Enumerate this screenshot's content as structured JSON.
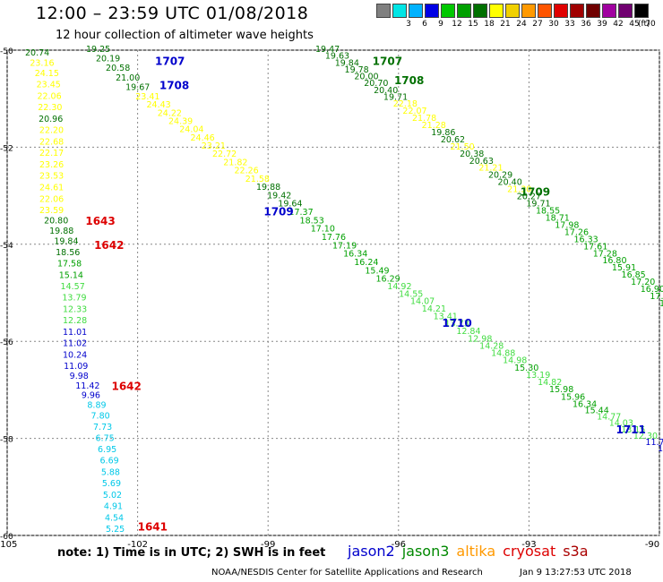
{
  "header": {
    "title": "12:00 – 23:59 UTC 01/08/2018",
    "subtitle": "12 hour collection of altimeter wave heights"
  },
  "legend": {
    "unit": "(ft)",
    "levels": [
      {
        "label": "",
        "color": "#808080"
      },
      {
        "label": "3",
        "color": "#00e5e5"
      },
      {
        "label": "6",
        "color": "#00b2ff"
      },
      {
        "label": "9",
        "color": "#0000e5"
      },
      {
        "label": "12",
        "color": "#00c800"
      },
      {
        "label": "15",
        "color": "#00a000"
      },
      {
        "label": "18",
        "color": "#007000"
      },
      {
        "label": "21",
        "color": "#ffff00"
      },
      {
        "label": "24",
        "color": "#f0d000"
      },
      {
        "label": "27",
        "color": "#ff9900"
      },
      {
        "label": "30",
        "color": "#ff5500"
      },
      {
        "label": "33",
        "color": "#e00000"
      },
      {
        "label": "36",
        "color": "#a00000"
      },
      {
        "label": "39",
        "color": "#700000"
      },
      {
        "label": "42",
        "color": "#a000a0"
      },
      {
        "label": "45",
        "color": "#700070"
      },
      {
        "label": "70",
        "color": "#000000"
      }
    ]
  },
  "map": {
    "lon_labels": [
      "-105",
      "-102",
      "-99",
      "-96",
      "-93",
      "-90"
    ],
    "lat_labels": [
      "-50",
      "-52",
      "-54",
      "-56",
      "-58",
      "-60"
    ],
    "lon_range": [
      -105,
      -90
    ],
    "lat_range": [
      -50,
      -60
    ],
    "colors": {
      "grid": "#888888",
      "frame": "#000000"
    }
  },
  "wave_colors": {
    "yellow": "#ffff00",
    "dgreen": "#007000",
    "mgreen": "#00a000",
    "lgreen": "#40dc40",
    "blue": "#0000cc",
    "cyan": "#00c8e8",
    "red": "#dd0000"
  },
  "satellite_colors": {
    "jason2": "#0000cc",
    "jason3": "#008800",
    "altika": "#ff9900",
    "cryosat": "#dd0000",
    "s3a": "#aa0000"
  },
  "tracks": [
    {
      "name": "track-a",
      "values": [
        [
          "20.74",
          "dgreen"
        ],
        [
          "23.16",
          "yellow"
        ],
        [
          "24.15",
          "yellow"
        ],
        [
          "23.45",
          "yellow"
        ],
        [
          "22.06",
          "yellow"
        ],
        [
          "22.30",
          "yellow"
        ],
        [
          "20.96",
          "dgreen"
        ],
        [
          "22.20",
          "yellow"
        ],
        [
          "22.68",
          "yellow"
        ],
        [
          "22.17",
          "yellow"
        ],
        [
          "23.26",
          "yellow"
        ],
        [
          "23.53",
          "yellow"
        ],
        [
          "24.61",
          "yellow"
        ],
        [
          "22.06",
          "yellow"
        ],
        [
          "23.59",
          "yellow"
        ],
        [
          "20.80",
          "dgreen"
        ],
        [
          "19.88",
          "dgreen"
        ],
        [
          "19.84",
          "dgreen"
        ],
        [
          "18.56",
          "dgreen"
        ],
        [
          "17.58",
          "mgreen"
        ],
        [
          "15.14",
          "mgreen"
        ],
        [
          "14.57",
          "lgreen"
        ],
        [
          "13.79",
          "lgreen"
        ],
        [
          "12.33",
          "lgreen"
        ],
        [
          "12.28",
          "lgreen"
        ],
        [
          "11.01",
          "blue"
        ],
        [
          "11.02",
          "blue"
        ],
        [
          "10.24",
          "blue"
        ],
        [
          "11.09",
          "blue"
        ],
        [
          "9.98",
          "blue"
        ],
        [
          "11.42",
          "blue"
        ],
        [
          "9.96",
          "blue"
        ],
        [
          "8.89",
          "cyan"
        ],
        [
          "7.80",
          "cyan"
        ],
        [
          "7.73",
          "cyan"
        ],
        [
          "6.75",
          "cyan"
        ],
        [
          "6.95",
          "cyan"
        ],
        [
          "6.69",
          "cyan"
        ],
        [
          "5.88",
          "cyan"
        ],
        [
          "5.69",
          "cyan"
        ],
        [
          "5.02",
          "cyan"
        ],
        [
          "4.91",
          "cyan"
        ],
        [
          "4.54",
          "cyan"
        ],
        [
          "5.25",
          "cyan"
        ]
      ]
    },
    {
      "name": "track-b",
      "values": [
        [
          "19.25",
          "dgreen"
        ],
        [
          "20.19",
          "dgreen"
        ],
        [
          "20.58",
          "dgreen"
        ],
        [
          "21.00",
          "dgreen"
        ],
        [
          "19.67",
          "dgreen"
        ],
        [
          "23.41",
          "yellow"
        ],
        [
          "24.43",
          "yellow"
        ],
        [
          "24.22",
          "yellow"
        ],
        [
          "24.39",
          "yellow"
        ],
        [
          "24.04",
          "yellow"
        ],
        [
          "24.46",
          "yellow"
        ],
        [
          "23.21",
          "yellow"
        ],
        [
          "22.72",
          "yellow"
        ],
        [
          "21.82",
          "yellow"
        ],
        [
          "22.26",
          "yellow"
        ],
        [
          "21.58",
          "yellow"
        ],
        [
          "19.88",
          "dgreen"
        ],
        [
          "19.42",
          "dgreen"
        ],
        [
          "19.64",
          "dgreen"
        ],
        [
          "17.37",
          "mgreen"
        ],
        [
          "18.53",
          "mgreen"
        ],
        [
          "17.10",
          "mgreen"
        ],
        [
          "17.76",
          "mgreen"
        ],
        [
          "17.19",
          "mgreen"
        ],
        [
          "16.34",
          "mgreen"
        ],
        [
          "16.24",
          "mgreen"
        ],
        [
          "15.49",
          "mgreen"
        ],
        [
          "16.29",
          "mgreen"
        ],
        [
          "14.92",
          "lgreen"
        ],
        [
          "14.55",
          "lgreen"
        ],
        [
          "14.07",
          "lgreen"
        ],
        [
          "14.21",
          "lgreen"
        ],
        [
          "13.41",
          "lgreen"
        ],
        [
          "13.73",
          "lgreen"
        ],
        [
          "12.84",
          "lgreen"
        ],
        [
          "12.98",
          "lgreen"
        ],
        [
          "14.28",
          "lgreen"
        ],
        [
          "14.88",
          "lgreen"
        ],
        [
          "14.98",
          "lgreen"
        ],
        [
          "15.30",
          "mgreen"
        ],
        [
          "13.19",
          "lgreen"
        ],
        [
          "14.82",
          "lgreen"
        ],
        [
          "15.98",
          "mgreen"
        ],
        [
          "15.96",
          "mgreen"
        ],
        [
          "16.34",
          "mgreen"
        ],
        [
          "15.44",
          "mgreen"
        ],
        [
          "14.77",
          "lgreen"
        ],
        [
          "14.03",
          "lgreen"
        ],
        [
          "13.15",
          "lgreen"
        ],
        [
          "12.30",
          "lgreen"
        ],
        [
          "11.76",
          "blue"
        ],
        [
          "11",
          "blue"
        ]
      ]
    },
    {
      "name": "track-c",
      "values": [
        [
          "19.47",
          "dgreen"
        ],
        [
          "19.63",
          "dgreen"
        ],
        [
          "19.84",
          "dgreen"
        ],
        [
          "19.78",
          "dgreen"
        ],
        [
          "20.00",
          "dgreen"
        ],
        [
          "20.70",
          "dgreen"
        ],
        [
          "20.40",
          "dgreen"
        ],
        [
          "19.71",
          "dgreen"
        ],
        [
          "22.18",
          "yellow"
        ],
        [
          "22.07",
          "yellow"
        ],
        [
          "21.78",
          "yellow"
        ],
        [
          "21.28",
          "yellow"
        ],
        [
          "19.86",
          "dgreen"
        ],
        [
          "20.62",
          "dgreen"
        ],
        [
          "21.50",
          "yellow"
        ],
        [
          "20.38",
          "dgreen"
        ],
        [
          "20.63",
          "dgreen"
        ],
        [
          "21.21",
          "yellow"
        ],
        [
          "20.29",
          "dgreen"
        ],
        [
          "20.40",
          "dgreen"
        ],
        [
          "21.30",
          "yellow"
        ],
        [
          "20.27",
          "dgreen"
        ],
        [
          "19.71",
          "dgreen"
        ],
        [
          "18.55",
          "mgreen"
        ],
        [
          "18.71",
          "mgreen"
        ],
        [
          "17.98",
          "mgreen"
        ],
        [
          "17.26",
          "mgreen"
        ],
        [
          "16.33",
          "mgreen"
        ],
        [
          "17.61",
          "mgreen"
        ],
        [
          "17.28",
          "mgreen"
        ],
        [
          "16.80",
          "mgreen"
        ],
        [
          "15.91",
          "mgreen"
        ],
        [
          "16.85",
          "mgreen"
        ],
        [
          "17.20",
          "mgreen"
        ],
        [
          "16.90",
          "mgreen"
        ],
        [
          "17.14",
          "mgreen"
        ],
        [
          "17",
          "mgreen"
        ]
      ]
    }
  ],
  "time_labels": [
    {
      "text": "1707",
      "color": "blue",
      "lon": -101.6,
      "lat": -50.3
    },
    {
      "text": "1708",
      "color": "blue",
      "lon": -101.5,
      "lat": -50.8
    },
    {
      "text": "1709",
      "color": "blue",
      "lon": -99.1,
      "lat": -53.4
    },
    {
      "text": "1710",
      "color": "blue",
      "lon": -95.0,
      "lat": -55.7
    },
    {
      "text": "1711",
      "color": "blue",
      "lon": -91.0,
      "lat": -57.9
    },
    {
      "text": "1707",
      "color": "dgreen",
      "lon": -96.6,
      "lat": -50.3
    },
    {
      "text": "1708",
      "color": "dgreen",
      "lon": -96.1,
      "lat": -50.7
    },
    {
      "text": "1709",
      "color": "dgreen",
      "lon": -93.2,
      "lat": -53.0
    },
    {
      "text": "1643",
      "color": "red",
      "lon": -103.2,
      "lat": -53.6
    },
    {
      "text": "1642",
      "color": "red",
      "lon": -103.0,
      "lat": -54.1
    },
    {
      "text": "1642",
      "color": "red",
      "lon": -102.6,
      "lat": -57.0
    },
    {
      "text": "1641",
      "color": "red",
      "lon": -102.0,
      "lat": -59.9
    }
  ],
  "footer": {
    "note": "note:  1) Time is in UTC;  2) SWH is in feet",
    "satellites": [
      {
        "key": "jason2",
        "label": "jason2"
      },
      {
        "key": "jason3",
        "label": "jason3"
      },
      {
        "key": "altika",
        "label": "altika"
      },
      {
        "key": "cryosat",
        "label": "cryosat"
      },
      {
        "key": "s3a",
        "label": "s3a"
      }
    ],
    "credit": "NOAA/NESDIS Center for Satellite Applications and Research",
    "timestamp": "Jan  9 13:27:53 UTC 2018"
  }
}
